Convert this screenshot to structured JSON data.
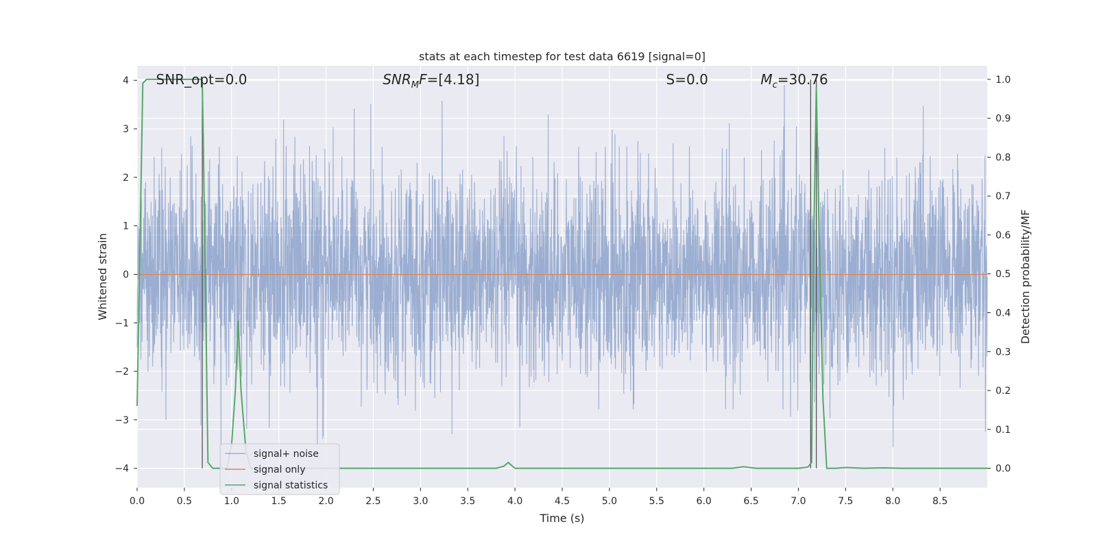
{
  "chart_data": {
    "type": "line",
    "title": "stats at each timestep for test data 6619 [signal=0]",
    "xlabel": "Time (s)",
    "ylabel": "Whitened strain",
    "ylabel_right": "Detection probability/MF",
    "xlim": [
      0,
      9
    ],
    "ylim": [
      -4.4,
      4.3
    ],
    "ylim_right": [
      -0.05,
      1.035
    ],
    "x_ticks": [
      0.0,
      0.5,
      1.0,
      1.5,
      2.0,
      2.5,
      3.0,
      3.5,
      4.0,
      4.5,
      5.0,
      5.5,
      6.0,
      6.5,
      7.0,
      7.5,
      8.0,
      8.5
    ],
    "x_tick_labels": [
      "0.0",
      "0.5",
      "1.0",
      "1.5",
      "2.0",
      "2.5",
      "3.0",
      "3.5",
      "4.0",
      "4.5",
      "5.0",
      "5.5",
      "6.0",
      "6.5",
      "7.0",
      "7.5",
      "8.0",
      "8.5"
    ],
    "y_ticks": [
      -4,
      -3,
      -2,
      -1,
      0,
      1,
      2,
      3,
      4
    ],
    "y_tick_labels": [
      "−4",
      "−3",
      "−2",
      "−1",
      "0",
      "1",
      "2",
      "3",
      "4"
    ],
    "y_ticks_right": [
      0.0,
      0.1,
      0.2,
      0.3,
      0.4,
      0.5,
      0.6,
      0.7,
      0.8,
      0.9,
      1.0
    ],
    "y_tick_labels_right": [
      "0.0",
      "0.1",
      "0.2",
      "0.3",
      "0.4",
      "0.5",
      "0.6",
      "0.7",
      "0.8",
      "0.9",
      "1.0"
    ],
    "annotations": [
      {
        "name": "snr-opt",
        "x": 0.2,
        "main": "SNR_opt=0.0",
        "sub": "",
        "rest": ""
      },
      {
        "name": "snr-mf",
        "x": 2.6,
        "main": "SNR",
        "sub": "M",
        "rest": "F=[4.18]"
      },
      {
        "name": "s-stat",
        "x": 5.6,
        "main": "S",
        "sub": "",
        "rest": "=0.0"
      },
      {
        "name": "chirp-mass",
        "x": 6.6,
        "main": "M",
        "sub": "c",
        "rest": "=30.76"
      }
    ],
    "vertical_lines_x": [
      0.69,
      7.13,
      7.19
    ],
    "series": [
      {
        "name": "signal+ noise",
        "color": "#4c72b0",
        "axis": "left",
        "kind": "noise"
      },
      {
        "name": "signal only",
        "color": "#dd8452",
        "axis": "left",
        "kind": "flat",
        "value": 0
      },
      {
        "name": "signal statistics",
        "color": "#55a868",
        "axis": "right",
        "kind": "line",
        "x": [
          0.0,
          0.06,
          0.1,
          0.2,
          0.3,
          0.4,
          0.5,
          0.6,
          0.68,
          0.69,
          0.7,
          0.75,
          0.8,
          0.85,
          0.9,
          0.95,
          1.0,
          1.04,
          1.07,
          1.1,
          1.15,
          1.2,
          1.3,
          2.0,
          3.0,
          3.8,
          3.88,
          3.93,
          3.96,
          4.0,
          5.0,
          6.0,
          6.3,
          6.42,
          6.55,
          6.8,
          7.0,
          7.1,
          7.14,
          7.16,
          7.19,
          7.22,
          7.26,
          7.3,
          7.4,
          7.5,
          7.7,
          7.9,
          8.1,
          8.5,
          9.0
        ],
        "y": [
          0.16,
          0.99,
          1.0,
          1.0,
          1.0,
          1.0,
          1.0,
          1.0,
          1.0,
          0.99,
          0.85,
          0.015,
          0.0,
          0.0,
          0.0,
          0.0,
          0.06,
          0.2,
          0.38,
          0.2,
          0.05,
          0.0,
          0.0,
          0.0,
          0.0,
          0.0,
          0.005,
          0.015,
          0.008,
          0.0,
          0.0,
          0.0,
          0.0,
          0.004,
          0.0,
          0.0,
          0.0,
          0.003,
          0.015,
          0.55,
          0.98,
          0.6,
          0.18,
          0.0,
          0.0,
          0.002,
          0.0,
          0.001,
          0.0,
          0.0,
          0.0
        ]
      }
    ],
    "legend": {
      "position": "lower-left"
    },
    "grid": true,
    "colors": {
      "background": "#eaeaf2",
      "grid": "#ffffff",
      "text": "#262626",
      "vline": "#555555"
    }
  }
}
